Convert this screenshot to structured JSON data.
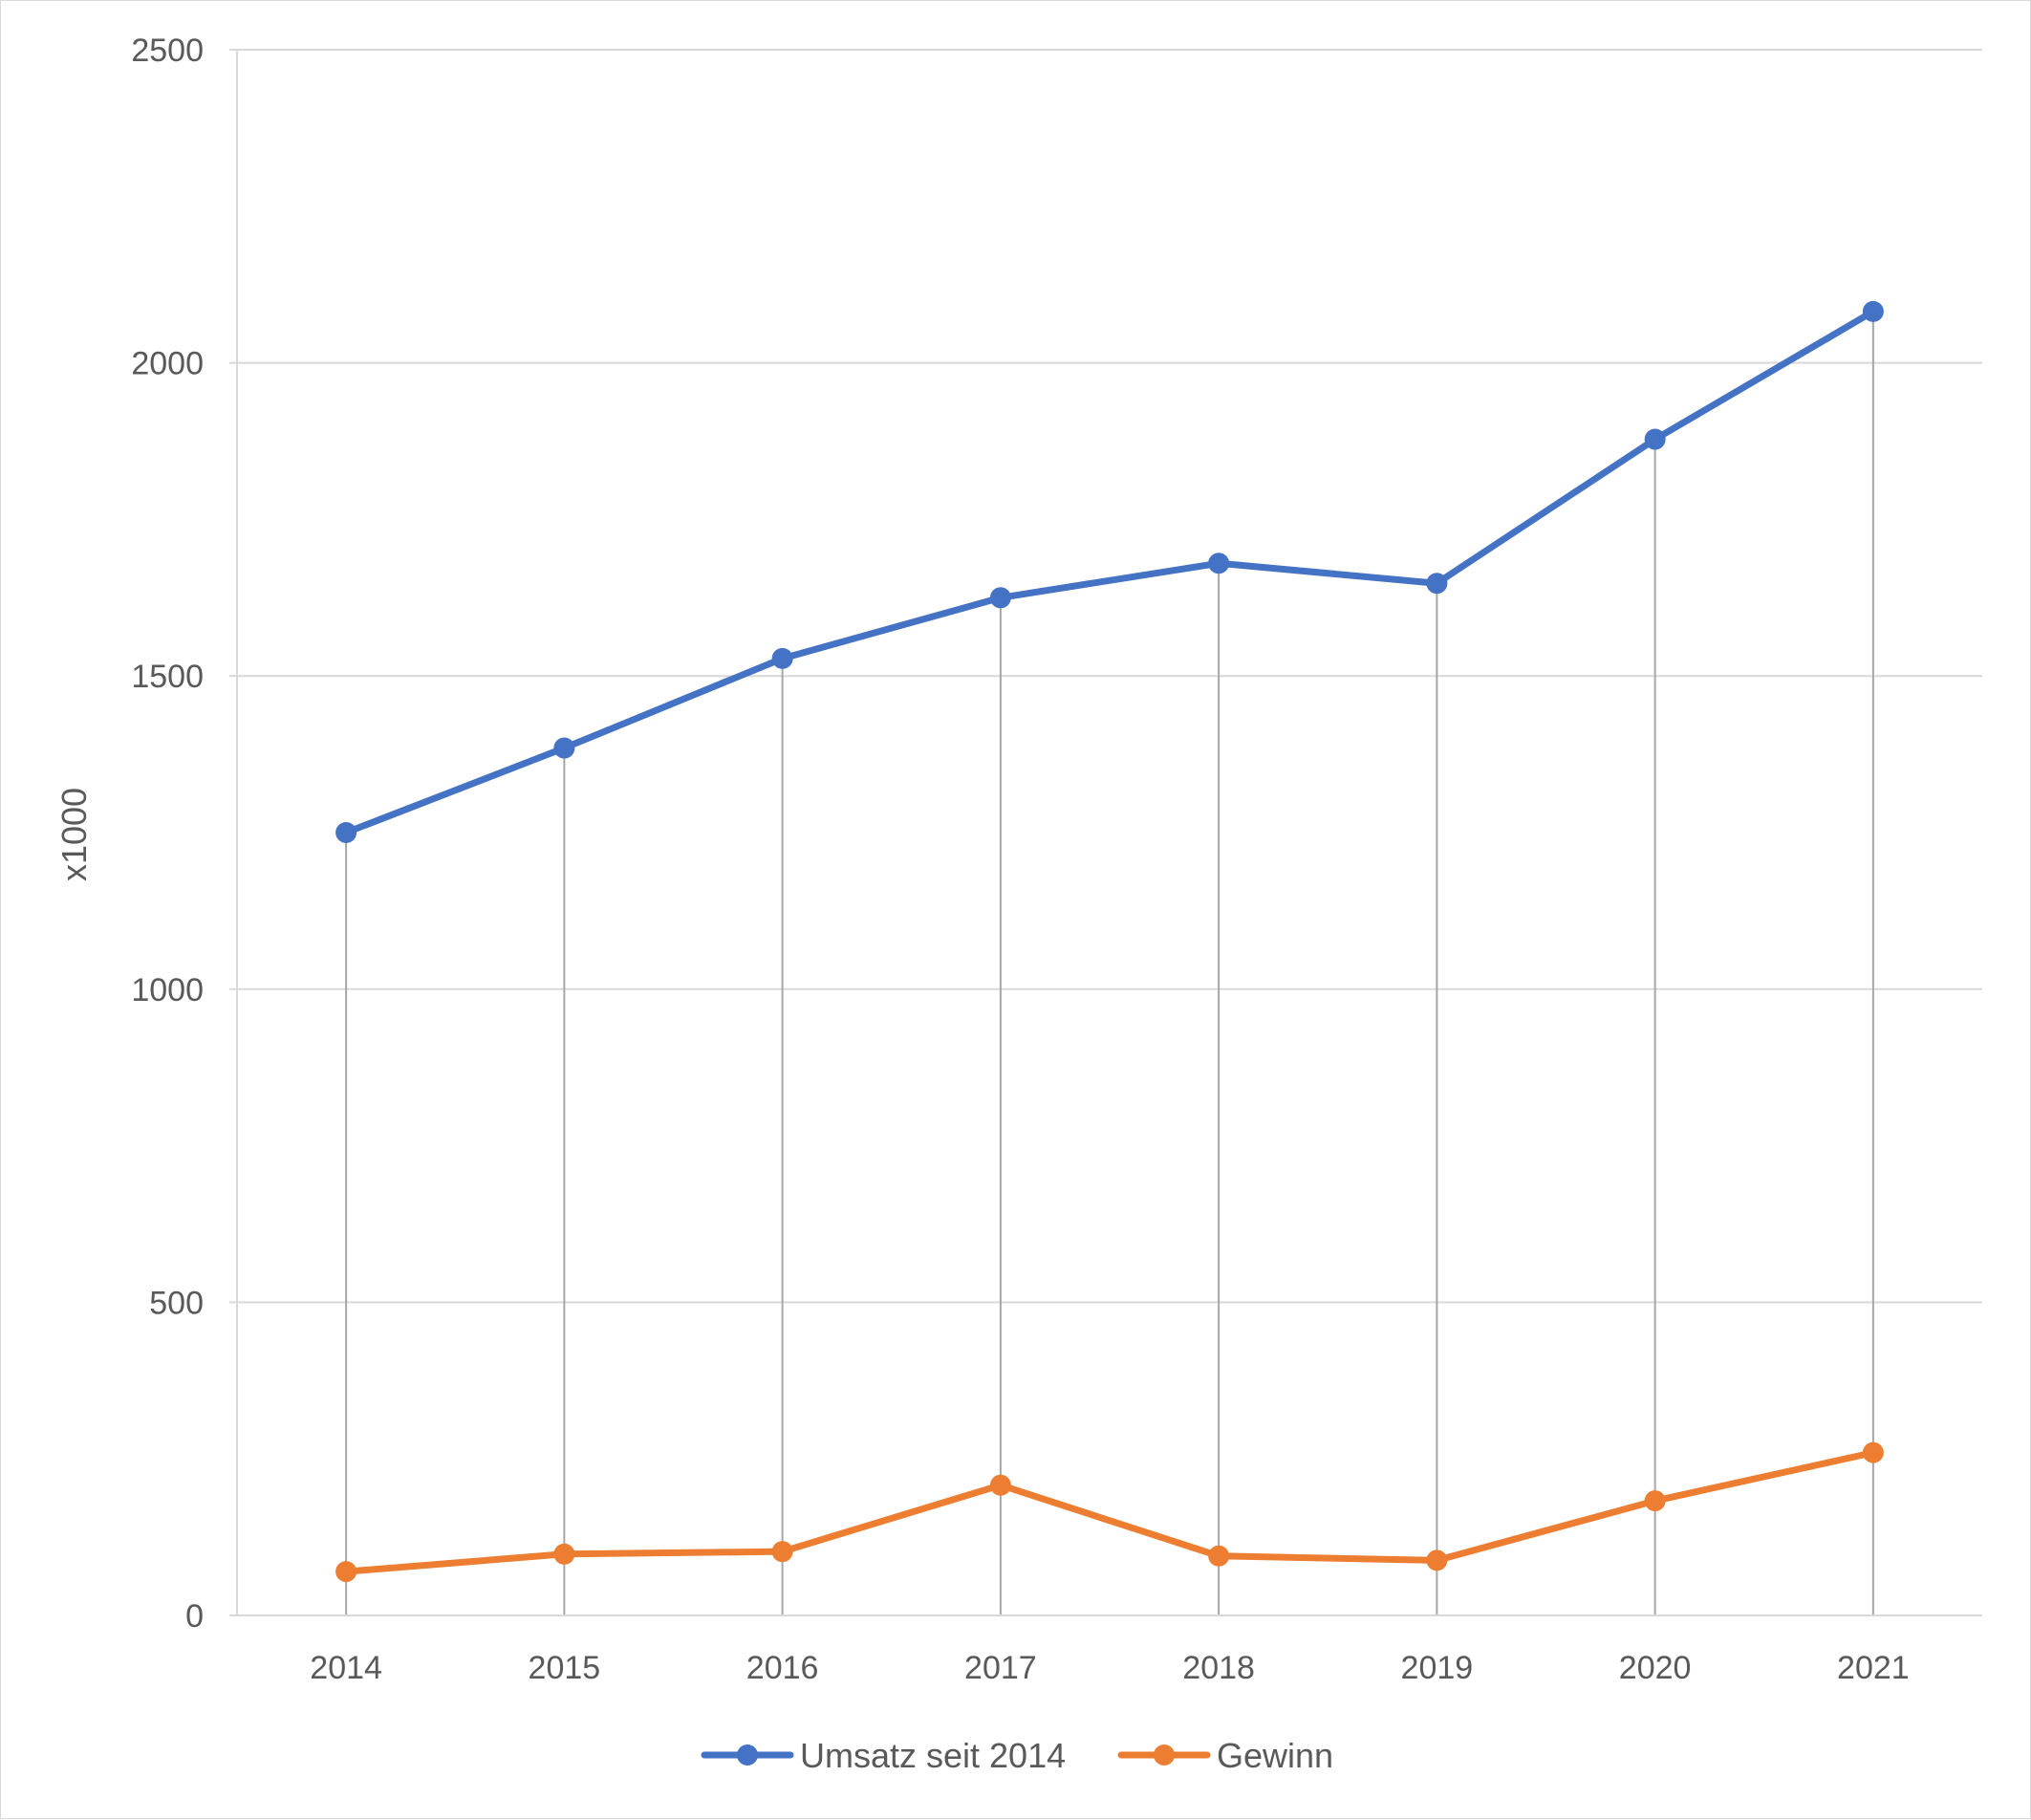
{
  "chart_data": {
    "type": "line",
    "categories": [
      "2014",
      "2015",
      "2016",
      "2017",
      "2018",
      "2019",
      "2020",
      "2021"
    ],
    "series": [
      {
        "name": "Umsatz seit 2014",
        "color": "#4472C4",
        "values": [
          1250,
          1385,
          1528,
          1625,
          1680,
          1648,
          1878,
          2082
        ]
      },
      {
        "name": "Gewinn",
        "color": "#ED7D31",
        "values": [
          70,
          98,
          102,
          208,
          95,
          88,
          183,
          260
        ]
      }
    ],
    "ylabel": "x1000",
    "ylim": [
      0,
      2500
    ],
    "yticks": [
      "0",
      "500",
      "1000",
      "1500",
      "2000",
      "2500"
    ],
    "grid": true,
    "drop_lines": true,
    "legend_position": "bottom",
    "markers": "circle"
  }
}
